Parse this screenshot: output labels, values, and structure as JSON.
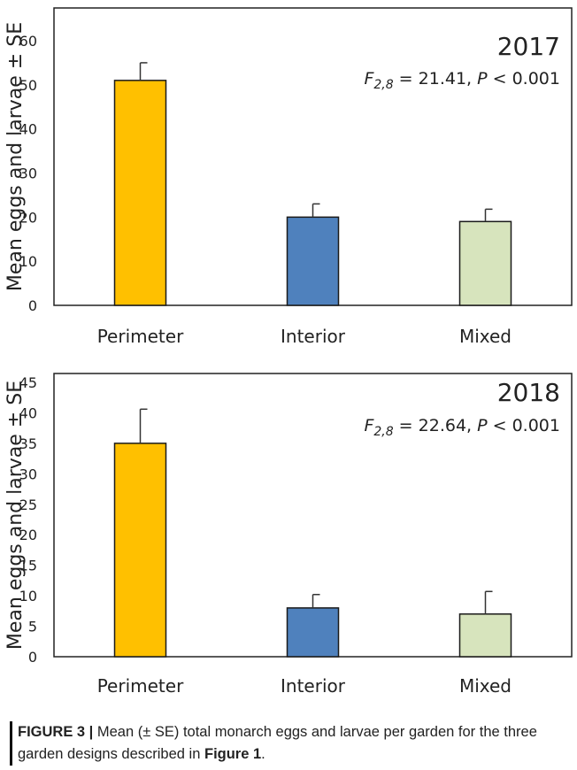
{
  "chart_data": [
    {
      "type": "bar",
      "title": "2017",
      "stat_prefix": "F",
      "stat_subscript": "2,8",
      "stat_mid": " = 21.41, ",
      "stat_p": "P",
      "stat_rest": " < 0.001",
      "ylabel": "Mean eggs and larvae ± SE",
      "xlabel": "",
      "categories": [
        "Perimeter",
        "Interior",
        "Mixed"
      ],
      "values": [
        51,
        20,
        19
      ],
      "errors": [
        4,
        3,
        2.8
      ],
      "colors": [
        "#FFC000",
        "#4F81BD",
        "#D7E4BD"
      ],
      "ylim": [
        0,
        60
      ],
      "yticks": [
        0,
        10,
        20,
        30,
        40,
        50,
        60
      ],
      "grid": false
    },
    {
      "type": "bar",
      "title": "2018",
      "stat_prefix": "F",
      "stat_subscript": "2,8",
      "stat_mid": " = 22.64, ",
      "stat_p": "P",
      "stat_rest": " < 0.001",
      "ylabel": "Mean eggs and larvae ± SE",
      "xlabel": "",
      "categories": [
        "Perimeter",
        "Interior",
        "Mixed"
      ],
      "values": [
        35,
        8,
        7
      ],
      "errors": [
        5.6,
        2.2,
        3.7
      ],
      "colors": [
        "#FFC000",
        "#4F81BD",
        "#D7E4BD"
      ],
      "ylim": [
        0,
        45
      ],
      "yticks": [
        0,
        5,
        10,
        15,
        20,
        25,
        30,
        35,
        40,
        45
      ],
      "grid": false
    }
  ],
  "caption": {
    "label": "FIGURE 3 |",
    "text_before": " Mean (± SE) total monarch eggs and larvae per garden for the three garden designs described in ",
    "ref": "Figure 1",
    "text_after": "."
  }
}
